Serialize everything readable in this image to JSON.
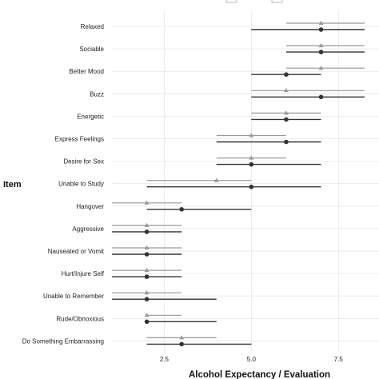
{
  "chart_data": {
    "type": "scatter",
    "subtype": "dot-and-interval (dumbbell) plot",
    "title": "",
    "xlabel": "Alcohol Expectancy / Evaluation",
    "ylabel": "Item",
    "xlim": [
      1,
      8.25
    ],
    "x_ticks": [
      "2.5",
      "5.0",
      "7.5"
    ],
    "grid": true,
    "legend_position": "top (clipped at image edge)",
    "colors": {
      "series_a": "#999999",
      "series_b": "#333333",
      "grid": "#e6e6e6"
    },
    "series": [
      {
        "marker": "triangle",
        "color": "#999999"
      },
      {
        "marker": "circle",
        "color": "#333333"
      }
    ],
    "items": [
      {
        "label": "Relaxed",
        "a": {
          "point": 7,
          "low": 6,
          "high": 8.25
        },
        "b": {
          "point": 7,
          "low": 5,
          "high": 8.25
        }
      },
      {
        "label": "Sociable",
        "a": {
          "point": 7,
          "low": 6,
          "high": 8.25
        },
        "b": {
          "point": 7,
          "low": 6,
          "high": 8.25
        }
      },
      {
        "label": "Better Mood",
        "a": {
          "point": 7,
          "low": 6,
          "high": 8.25
        },
        "b": {
          "point": 6,
          "low": 5,
          "high": 7
        }
      },
      {
        "label": "Buzz",
        "a": {
          "point": 6,
          "low": 5,
          "high": 8.25
        },
        "b": {
          "point": 7,
          "low": 5,
          "high": 8.25
        }
      },
      {
        "label": "Energetic",
        "a": {
          "point": 6,
          "low": 5,
          "high": 7
        },
        "b": {
          "point": 6,
          "low": 5,
          "high": 7
        }
      },
      {
        "label": "Express Feelings",
        "a": {
          "point": 5,
          "low": 4,
          "high": 6
        },
        "b": {
          "point": 6,
          "low": 4,
          "high": 7
        }
      },
      {
        "label": "Desire for Sex",
        "a": {
          "point": 5,
          "low": 4,
          "high": 6
        },
        "b": {
          "point": 5,
          "low": 4,
          "high": 7
        }
      },
      {
        "label": "Unable to Study",
        "a": {
          "point": 4,
          "low": 2,
          "high": 5
        },
        "b": {
          "point": 5,
          "low": 2,
          "high": 7
        }
      },
      {
        "label": "Hangover",
        "a": {
          "point": 2,
          "low": 1,
          "high": 3
        },
        "b": {
          "point": 3,
          "low": 2,
          "high": 5
        }
      },
      {
        "label": "Aggressive",
        "a": {
          "point": 2,
          "low": 1,
          "high": 3
        },
        "b": {
          "point": 2,
          "low": 1,
          "high": 3
        }
      },
      {
        "label": "Nauseated or Vomit",
        "a": {
          "point": 2,
          "low": 1,
          "high": 3
        },
        "b": {
          "point": 2,
          "low": 1,
          "high": 3
        }
      },
      {
        "label": "Hurt/Injure Self",
        "a": {
          "point": 2,
          "low": 1,
          "high": 3
        },
        "b": {
          "point": 2,
          "low": 1,
          "high": 3
        }
      },
      {
        "label": "Unable to Remember",
        "a": {
          "point": 2,
          "low": 1,
          "high": 3
        },
        "b": {
          "point": 2,
          "low": 1,
          "high": 4
        }
      },
      {
        "label": "Rude/Obnoxious",
        "a": {
          "point": 2,
          "low": 2,
          "high": 3
        },
        "b": {
          "point": 2,
          "low": 2,
          "high": 4
        }
      },
      {
        "label": "Do Something Embarrassing",
        "a": {
          "point": 3,
          "low": 2,
          "high": 4
        },
        "b": {
          "point": 3,
          "low": 2,
          "high": 5
        }
      }
    ]
  }
}
